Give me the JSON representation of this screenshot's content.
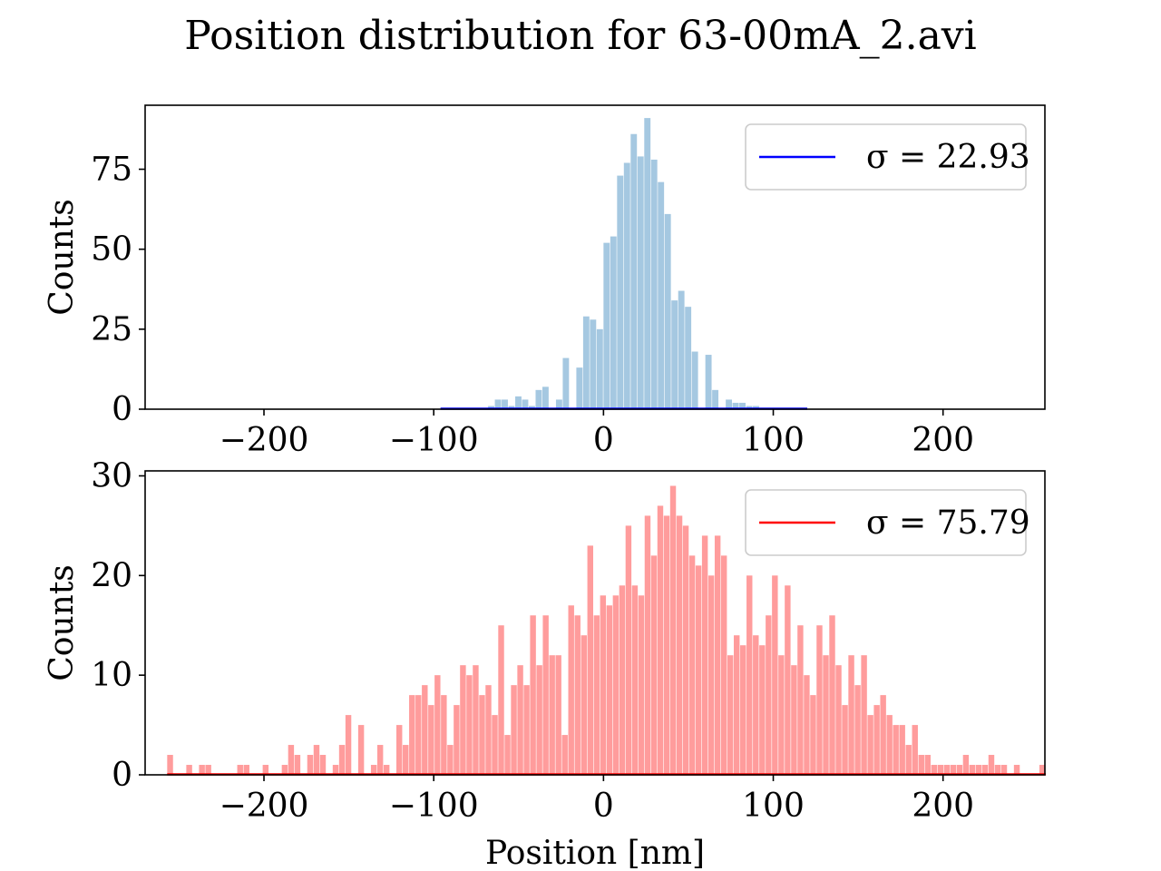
{
  "figure": {
    "title": "Position distribution for 63-00mA_2.avi"
  },
  "chart_data": [
    {
      "type": "bar",
      "name": "top-histogram",
      "ylabel": "Counts",
      "xlabel": "",
      "xlim": [
        -270,
        260
      ],
      "ylim": [
        0,
        95
      ],
      "xticks": [
        -200,
        -100,
        0,
        100,
        200
      ],
      "xtick_labels": [
        "−200",
        "−100",
        "0",
        "100",
        "200"
      ],
      "yticks": [
        0,
        25,
        50,
        75
      ],
      "ytick_labels": [
        "0",
        "25",
        "50",
        "75"
      ],
      "bar_color": "#a5c8e1",
      "line_color": "#0000ff",
      "legend": {
        "label": "σ = 22.93",
        "position": "upper right"
      },
      "bin_start": -96,
      "bin_width": 4,
      "counts": [
        0.4,
        0.4,
        0.4,
        0.4,
        0.4,
        0.4,
        0.4,
        1,
        3,
        3,
        1,
        4,
        3,
        1,
        6,
        7,
        0,
        3,
        16,
        0,
        13,
        29,
        28,
        25,
        52,
        54,
        73,
        77,
        86,
        79,
        91,
        78,
        71,
        61,
        34,
        37,
        32,
        18,
        0,
        17,
        6,
        0,
        3,
        2,
        2,
        1,
        1,
        0,
        0,
        0,
        0,
        0.4,
        0.4,
        0.4
      ]
    },
    {
      "type": "bar",
      "name": "bottom-histogram",
      "ylabel": "Counts",
      "xlabel": "Position [nm]",
      "xlim": [
        -270,
        260
      ],
      "ylim": [
        0,
        30.5
      ],
      "xticks": [
        -200,
        -100,
        0,
        100,
        200
      ],
      "xtick_labels": [
        "−200",
        "−100",
        "0",
        "100",
        "200"
      ],
      "yticks": [
        0,
        10,
        20,
        30
      ],
      "ytick_labels": [
        "0",
        "10",
        "20",
        "30"
      ],
      "bar_color": "#ff9c9c",
      "line_color": "#ff0000",
      "legend": {
        "label": "σ = 75.79",
        "position": "upper right"
      },
      "bin_start": -257,
      "bin_width": 3.75,
      "counts": [
        2,
        0,
        0,
        1,
        0,
        1,
        1,
        0,
        0,
        0,
        0,
        1,
        1,
        0,
        0,
        1,
        0,
        0,
        1,
        3,
        2,
        0,
        2,
        3,
        2,
        0,
        1,
        3,
        6,
        0,
        5,
        0,
        1,
        3,
        1,
        0,
        5,
        3,
        8,
        8,
        9,
        7,
        10,
        8,
        3,
        7,
        11,
        10,
        11,
        8,
        9,
        6,
        15,
        4,
        9,
        11,
        9,
        16,
        11,
        16,
        12,
        12,
        4,
        17,
        16,
        14,
        23,
        16,
        18,
        17,
        18,
        19,
        25,
        19,
        18,
        26,
        22,
        27,
        26,
        29,
        26,
        25,
        22,
        21,
        24,
        20,
        24,
        22,
        12,
        14,
        13,
        20,
        14,
        13,
        16,
        20,
        12,
        19,
        11,
        15,
        10,
        8,
        15,
        12,
        16,
        11,
        7,
        12,
        9,
        12,
        6,
        7,
        8,
        6,
        5,
        5,
        3,
        5,
        2,
        2,
        1,
        1,
        1,
        1,
        1,
        2,
        1,
        1,
        1,
        2,
        1,
        1,
        0,
        1,
        0,
        0,
        0,
        1
      ]
    }
  ]
}
